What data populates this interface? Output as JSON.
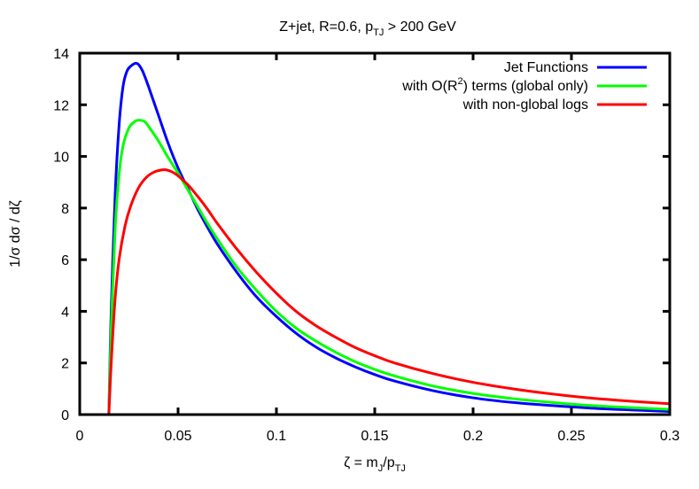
{
  "chart_data": {
    "type": "line",
    "title": {
      "main": "Z+jet, R=0.6, p",
      "sub": "TJ",
      "rest": " > 200 GeV"
    },
    "xlabel": {
      "main": "ζ = m",
      "sub1": "J",
      "mid": "/p",
      "sub2": "TJ"
    },
    "ylabel": "1/σ dσ / dζ",
    "xlim": [
      0,
      0.3
    ],
    "ylim": [
      0,
      14
    ],
    "xticks": [
      "0",
      "0.05",
      "0.1",
      "0.15",
      "0.2",
      "0.25",
      "0.3"
    ],
    "yticks": [
      "0",
      "2",
      "4",
      "6",
      "8",
      "10",
      "12",
      "14"
    ],
    "grid": false,
    "legend_position": "top-right",
    "series": [
      {
        "name": "Jet Functions",
        "color": "#0000ff",
        "x": [
          0.0148,
          0.016,
          0.018,
          0.02,
          0.022,
          0.024,
          0.026,
          0.028,
          0.029,
          0.03,
          0.032,
          0.035,
          0.04,
          0.045,
          0.05,
          0.055,
          0.06,
          0.065,
          0.07,
          0.08,
          0.09,
          0.1,
          0.11,
          0.12,
          0.13,
          0.14,
          0.15,
          0.16,
          0.18,
          0.2,
          0.22,
          0.24,
          0.26,
          0.28,
          0.3
        ],
        "y": [
          0,
          4.0,
          8.5,
          11.2,
          12.7,
          13.3,
          13.5,
          13.6,
          13.6,
          13.55,
          13.3,
          12.7,
          11.6,
          10.5,
          9.55,
          8.75,
          7.95,
          7.25,
          6.6,
          5.5,
          4.55,
          3.8,
          3.15,
          2.62,
          2.2,
          1.85,
          1.55,
          1.3,
          0.92,
          0.65,
          0.47,
          0.35,
          0.25,
          0.18,
          0.12
        ]
      },
      {
        "name": "with O(R²) terms (global only)",
        "label_main": "with O(R",
        "label_sup": "2",
        "label_rest": ") terms (global only)",
        "color": "#00ff00",
        "x": [
          0.0148,
          0.016,
          0.018,
          0.02,
          0.022,
          0.025,
          0.028,
          0.03,
          0.033,
          0.036,
          0.04,
          0.045,
          0.05,
          0.055,
          0.06,
          0.065,
          0.07,
          0.08,
          0.09,
          0.1,
          0.11,
          0.12,
          0.13,
          0.14,
          0.15,
          0.16,
          0.18,
          0.2,
          0.22,
          0.24,
          0.26,
          0.28,
          0.3
        ],
        "y": [
          0,
          3.3,
          7.2,
          9.3,
          10.4,
          11.1,
          11.35,
          11.4,
          11.35,
          11.05,
          10.6,
          9.95,
          9.35,
          8.7,
          8.05,
          7.4,
          6.8,
          5.7,
          4.8,
          4.0,
          3.35,
          2.85,
          2.42,
          2.05,
          1.75,
          1.5,
          1.1,
          0.82,
          0.62,
          0.47,
          0.35,
          0.27,
          0.2
        ]
      },
      {
        "name": "with non-global logs",
        "color": "#ff0000",
        "x": [
          0.0148,
          0.016,
          0.018,
          0.02,
          0.023,
          0.026,
          0.03,
          0.034,
          0.038,
          0.042,
          0.044,
          0.047,
          0.05,
          0.055,
          0.06,
          0.065,
          0.07,
          0.08,
          0.09,
          0.1,
          0.11,
          0.12,
          0.13,
          0.14,
          0.15,
          0.16,
          0.18,
          0.2,
          0.22,
          0.24,
          0.26,
          0.28,
          0.3
        ],
        "y": [
          0,
          2.0,
          4.5,
          6.0,
          7.3,
          8.1,
          8.8,
          9.2,
          9.4,
          9.48,
          9.48,
          9.4,
          9.25,
          8.9,
          8.45,
          7.95,
          7.4,
          6.4,
          5.5,
          4.7,
          4.0,
          3.45,
          3.0,
          2.6,
          2.28,
          2.0,
          1.58,
          1.25,
          1.0,
          0.8,
          0.64,
          0.52,
          0.42
        ]
      }
    ]
  }
}
